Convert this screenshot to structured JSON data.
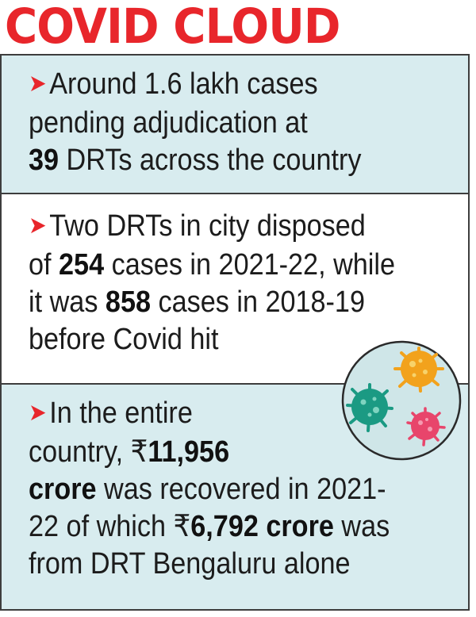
{
  "title": "COVID CLOUD",
  "items": [
    {
      "lines": [
        [
          {
            "t": "Around 1.6 lakh cases",
            "b": false
          }
        ],
        [
          {
            "t": "pending adjudication at",
            "b": false
          }
        ],
        [
          {
            "t": "39",
            "b": true
          },
          {
            "t": " DRTs across the country",
            "b": false
          }
        ]
      ]
    },
    {
      "lines": [
        [
          {
            "t": "Two DRTs in city disposed",
            "b": false
          }
        ],
        [
          {
            "t": "of ",
            "b": false
          },
          {
            "t": "254",
            "b": true
          },
          {
            "t": " cases in 2021-22, while",
            "b": false
          }
        ],
        [
          {
            "t": "it was ",
            "b": false
          },
          {
            "t": "858",
            "b": true
          },
          {
            "t": " cases in 2018-19",
            "b": false
          }
        ],
        [
          {
            "t": "before Covid hit",
            "b": false
          }
        ]
      ]
    },
    {
      "lines": [
        [
          {
            "t": "In the entire",
            "b": false
          }
        ],
        [
          {
            "t": "country, ₹",
            "b": false
          },
          {
            "t": "11,956",
            "b": true
          }
        ],
        [
          {
            "t": "crore",
            "b": true
          },
          {
            "t": " was recovered in 2021-",
            "b": false
          }
        ],
        [
          {
            "t": "22 of which ₹",
            "b": false
          },
          {
            "t": "6,792 crore",
            "b": true
          },
          {
            "t": " was",
            "b": false
          }
        ],
        [
          {
            "t": "from DRT Bengaluru alone",
            "b": false
          }
        ]
      ]
    }
  ],
  "colors": {
    "accent": "#e8262b",
    "panel": "#d8ecef",
    "border": "#3d3d3d"
  },
  "icons": {
    "bullet": "arrow-bullet-icon",
    "illustration": "virus-illustration"
  }
}
